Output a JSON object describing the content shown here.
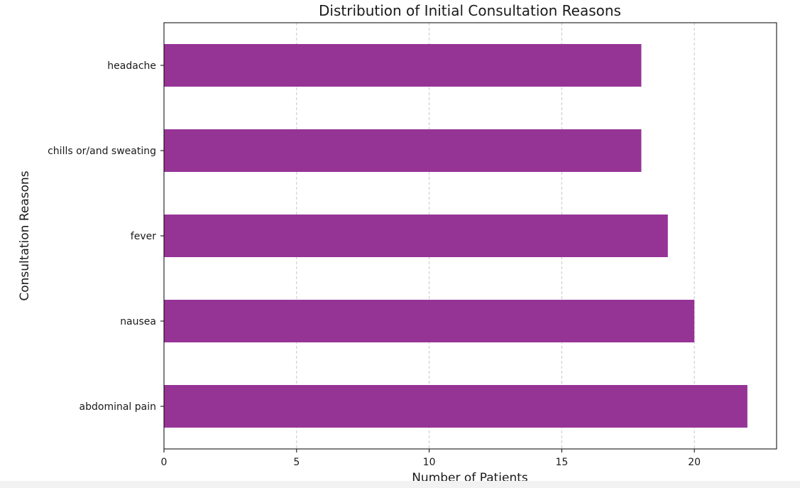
{
  "chart_data": {
    "type": "bar",
    "orientation": "horizontal",
    "title": "Distribution of Initial Consultation Reasons",
    "xlabel": "Number of Patients",
    "ylabel": "Consultation Reasons",
    "categories": [
      "abdominal pain",
      "nausea",
      "fever",
      "chills or/and sweating",
      "headache"
    ],
    "values": [
      22,
      20,
      19,
      18,
      18
    ],
    "xlim": [
      0,
      23.1
    ],
    "xticks": [
      0,
      5,
      10,
      15,
      20
    ],
    "grid": "x-axis dashed",
    "bar_color": "#963496"
  }
}
